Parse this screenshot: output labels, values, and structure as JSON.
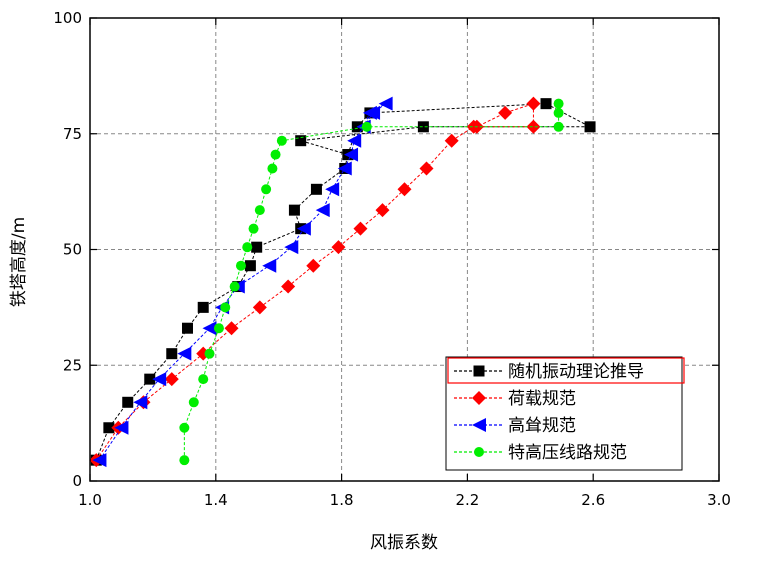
{
  "chart_data": {
    "type": "line",
    "xlabel": "风振系数",
    "ylabel": "铁塔高度/m",
    "xlim": [
      1.0,
      3.0
    ],
    "ylim": [
      0,
      100
    ],
    "x_ticks": [
      "1.0",
      "1.4",
      "1.8",
      "2.2",
      "2.6",
      "3.0"
    ],
    "x_tick_values": [
      1.0,
      1.4,
      1.8,
      2.2,
      2.6,
      3.0
    ],
    "y_ticks": [
      "0",
      "25",
      "50",
      "75",
      "100"
    ],
    "y_tick_values": [
      0,
      25,
      50,
      75,
      100
    ],
    "grid": "dashed at ticks",
    "legend_position": "bottom-right",
    "stray_text": "",
    "series": [
      {
        "name": "随机振动理论推导",
        "color": "#000000",
        "marker": "square",
        "points": [
          [
            1.02,
            4.5
          ],
          [
            1.06,
            11.5
          ],
          [
            1.12,
            17
          ],
          [
            1.19,
            22
          ],
          [
            1.26,
            27.5
          ],
          [
            1.31,
            33
          ],
          [
            1.36,
            37.5
          ],
          [
            1.47,
            42
          ],
          [
            1.51,
            46.5
          ],
          [
            1.53,
            50.5
          ],
          [
            1.67,
            54.5
          ],
          [
            1.65,
            58.5
          ],
          [
            1.72,
            63
          ],
          [
            1.81,
            67.5
          ],
          [
            1.82,
            70.5
          ],
          [
            1.67,
            73.5
          ],
          [
            2.06,
            76.5
          ],
          [
            2.59,
            76.5
          ],
          [
            2.45,
            81.5
          ],
          [
            1.89,
            79.5
          ],
          [
            1.85,
            76.5
          ],
          [
            1.82,
            70.5
          ]
        ]
      },
      {
        "name": "荷载规范",
        "color": "#ff0000",
        "marker": "diamond",
        "points": [
          [
            1.02,
            4.5
          ],
          [
            1.09,
            11.5
          ],
          [
            1.17,
            17
          ],
          [
            1.26,
            22
          ],
          [
            1.36,
            27.5
          ],
          [
            1.45,
            33
          ],
          [
            1.54,
            37.5
          ],
          [
            1.63,
            42
          ],
          [
            1.71,
            46.5
          ],
          [
            1.79,
            50.5
          ],
          [
            1.86,
            54.5
          ],
          [
            1.93,
            58.5
          ],
          [
            2.0,
            63
          ],
          [
            2.07,
            67.5
          ],
          [
            2.15,
            73.5
          ],
          [
            2.22,
            76.5
          ],
          [
            2.41,
            76.5
          ],
          [
            2.41,
            81.5
          ],
          [
            2.32,
            79.5
          ],
          [
            2.23,
            76.5
          ]
        ]
      },
      {
        "name": "高耸规范",
        "color": "#0000ff",
        "marker": "triangle-left",
        "points": [
          [
            1.03,
            4.5
          ],
          [
            1.1,
            11.5
          ],
          [
            1.16,
            17
          ],
          [
            1.22,
            22
          ],
          [
            1.3,
            27.5
          ],
          [
            1.38,
            33
          ],
          [
            1.42,
            37.5
          ],
          [
            1.47,
            42
          ],
          [
            1.57,
            46.5
          ],
          [
            1.64,
            50.5
          ],
          [
            1.68,
            54.5
          ],
          [
            1.74,
            58.5
          ],
          [
            1.77,
            63
          ],
          [
            1.81,
            67.5
          ],
          [
            1.83,
            70.5
          ],
          [
            1.84,
            73.5
          ],
          [
            1.87,
            76.5
          ],
          [
            1.89,
            79.5
          ],
          [
            1.94,
            81.5
          ],
          [
            1.9,
            79.5
          ],
          [
            1.87,
            76.5
          ]
        ]
      },
      {
        "name": "特高压线路规范",
        "color": "#00ee00",
        "marker": "circle",
        "points": [
          [
            1.3,
            4.5
          ],
          [
            1.3,
            11.5
          ],
          [
            1.33,
            17
          ],
          [
            1.36,
            22
          ],
          [
            1.38,
            27.5
          ],
          [
            1.41,
            33
          ],
          [
            1.43,
            37.5
          ],
          [
            1.46,
            42
          ],
          [
            1.48,
            46.5
          ],
          [
            1.5,
            50.5
          ],
          [
            1.52,
            54.5
          ],
          [
            1.54,
            58.5
          ],
          [
            1.56,
            63
          ],
          [
            1.58,
            67.5
          ],
          [
            1.59,
            70.5
          ],
          [
            1.61,
            73.5
          ],
          [
            1.88,
            76.5
          ],
          [
            2.49,
            76.5
          ],
          [
            2.49,
            79.5
          ],
          [
            2.49,
            81.5
          ]
        ]
      }
    ]
  }
}
